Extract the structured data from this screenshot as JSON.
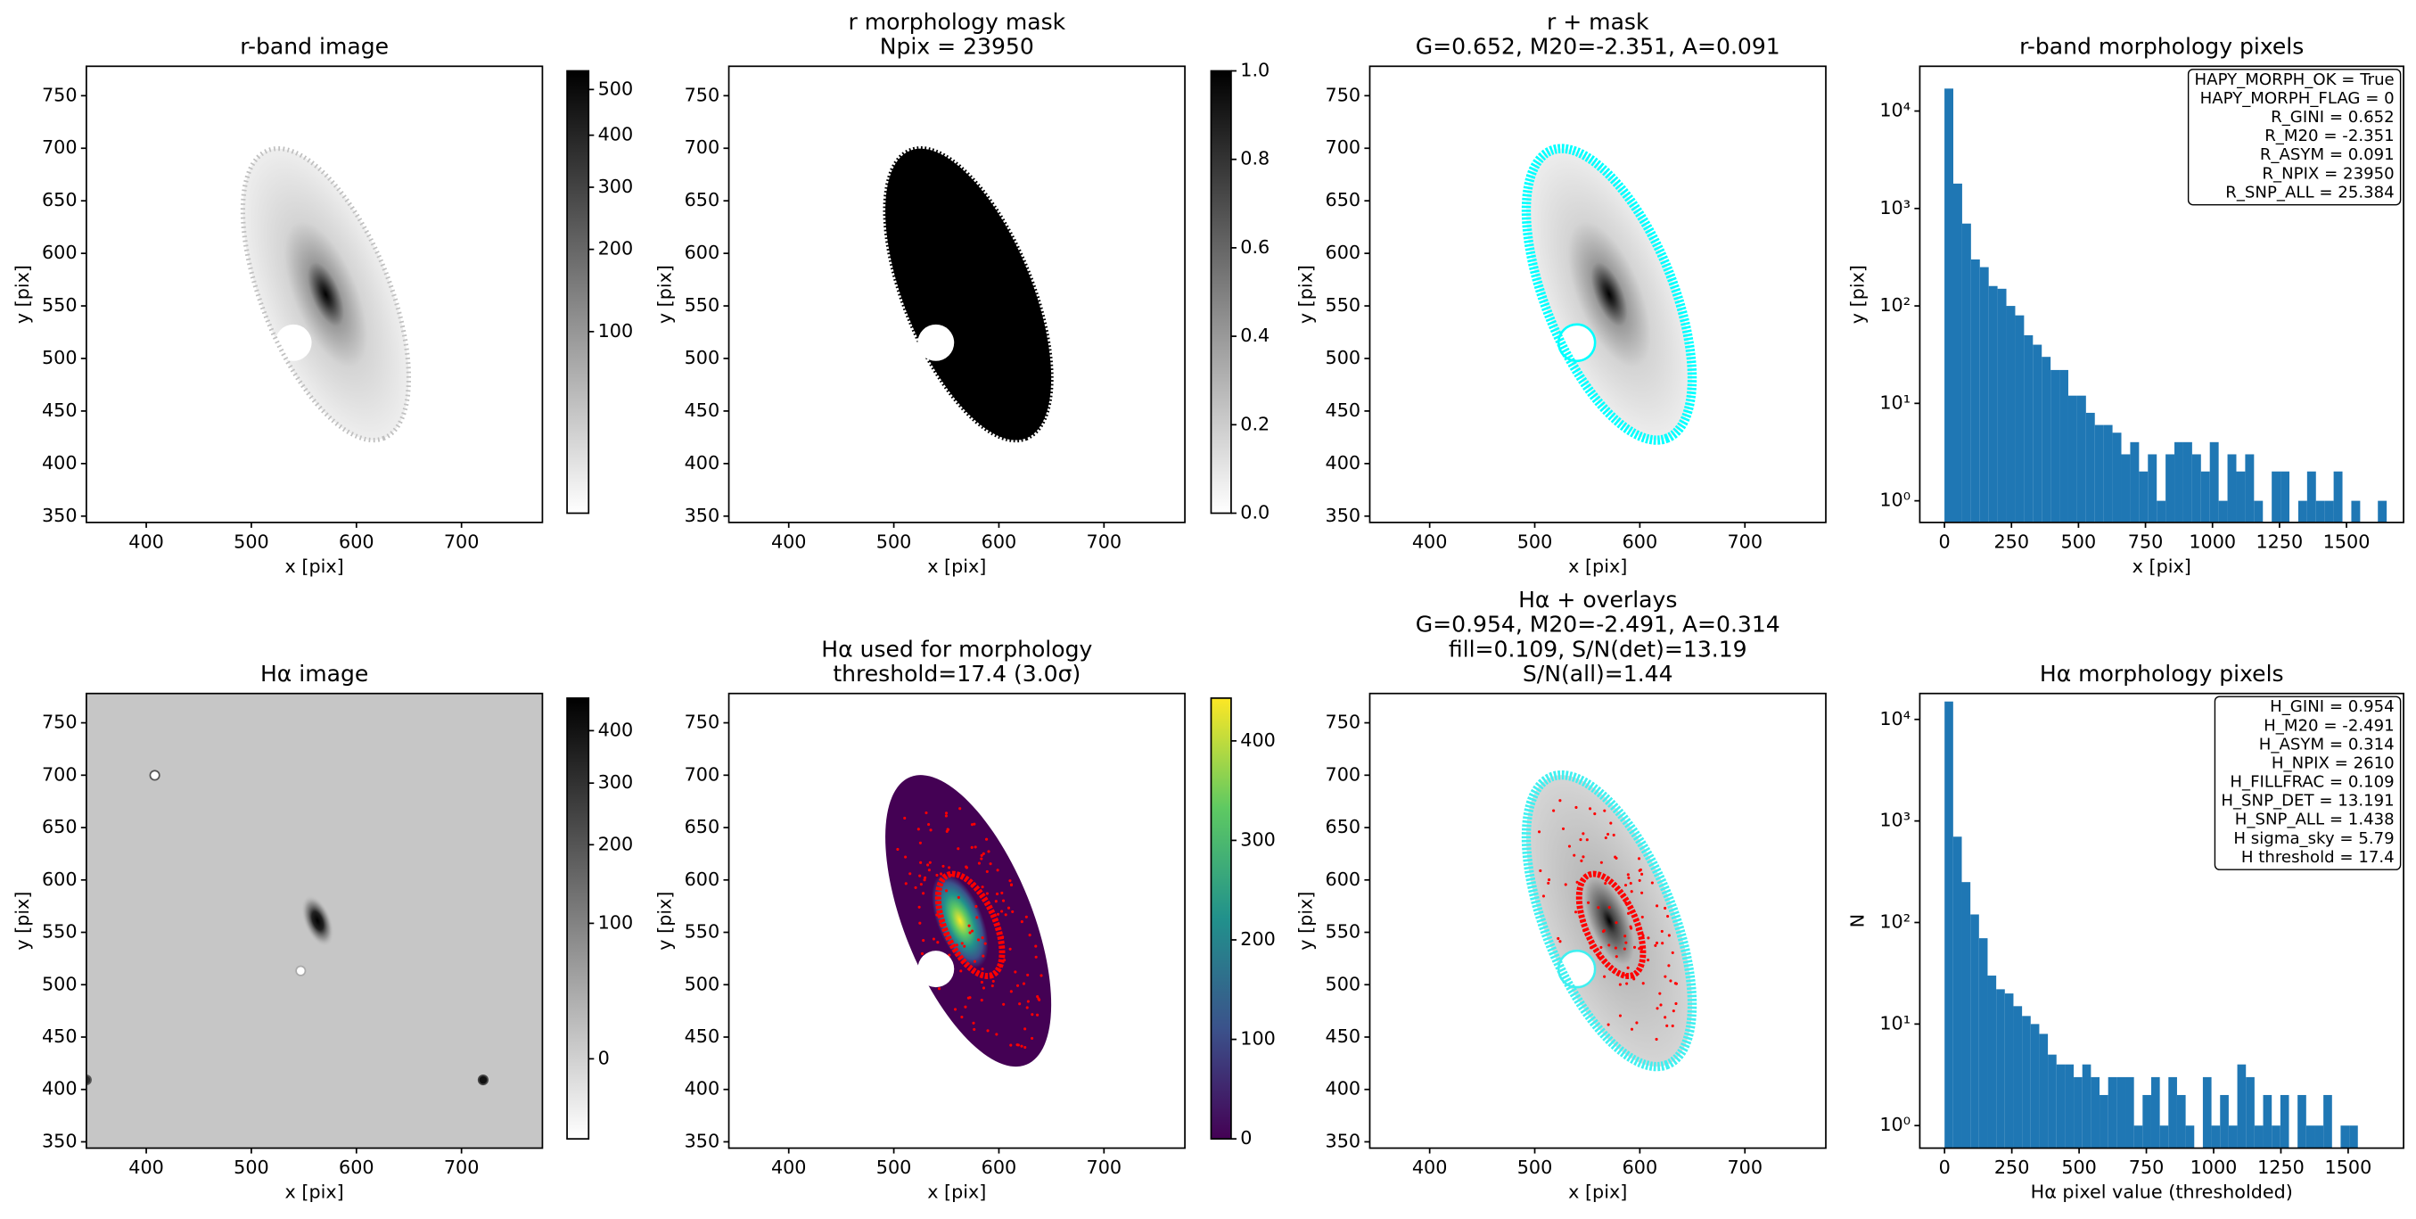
{
  "chart_data": [
    {
      "type": "image",
      "title": [
        "r-band image"
      ],
      "xlabel": "x [pix]",
      "ylabel": "y [pix]",
      "xlim": [
        343,
        777
      ],
      "ylim": [
        344,
        778
      ],
      "xticks": [
        400,
        500,
        600,
        700
      ],
      "yticks": [
        350,
        400,
        450,
        500,
        550,
        600,
        650,
        700,
        750
      ],
      "colormap": "gray_r",
      "colorbar": {
        "scale": "sqrt",
        "clim": [
          10,
          544
        ],
        "ticks": [
          100,
          200,
          300,
          400,
          500
        ]
      }
    },
    {
      "type": "image",
      "title": [
        "r morphology mask",
        "Npix = 23950"
      ],
      "xlabel": "x [pix]",
      "ylabel": "y [pix]",
      "xlim": [
        343,
        777
      ],
      "ylim": [
        344,
        778
      ],
      "xticks": [
        400,
        500,
        600,
        700
      ],
      "yticks": [
        350,
        400,
        450,
        500,
        550,
        600,
        650,
        700,
        750
      ],
      "colormap": "binary",
      "colorbar": {
        "scale": "linear",
        "clim": [
          0,
          1
        ],
        "ticks": [
          {
            "value": 0,
            "label": "0.0"
          },
          {
            "value": 0.2,
            "label": "0.2"
          },
          {
            "value": 0.4,
            "label": "0.4"
          },
          {
            "value": 0.6,
            "label": "0.6"
          },
          {
            "value": 0.8,
            "label": "0.8"
          },
          {
            "value": 1,
            "label": "1.0"
          }
        ]
      }
    },
    {
      "type": "image",
      "title": [
        "r + mask",
        "G=0.652, M20=-2.351, A=0.091"
      ],
      "xlabel": "x [pix]",
      "ylabel": "y [pix]",
      "xlim": [
        343,
        777
      ],
      "ylim": [
        344,
        778
      ],
      "xticks": [
        400,
        500,
        600,
        700
      ],
      "yticks": [
        350,
        400,
        450,
        500,
        550,
        600,
        650,
        700,
        750
      ],
      "colormap": "gray_r",
      "mask_color": "#00ffff"
    },
    {
      "type": "histogram",
      "title": [
        "r-band morphology pixels"
      ],
      "xlabel": "x [pix]",
      "ylabel": "y [pix]",
      "bins": [
        0,
        33,
        66,
        99,
        132,
        165,
        198,
        231,
        264,
        297,
        330,
        363,
        396,
        429,
        462,
        495,
        528,
        561,
        594,
        627,
        660,
        693,
        726,
        759,
        792,
        825,
        858,
        891,
        924,
        957,
        990,
        1023,
        1056,
        1089,
        1122,
        1155,
        1188,
        1221,
        1254,
        1287,
        1320,
        1353,
        1386,
        1419,
        1452,
        1485,
        1518,
        1551,
        1584,
        1617,
        1650
      ],
      "counts": [
        17000,
        1800,
        700,
        300,
        250,
        160,
        150,
        100,
        80,
        50,
        40,
        30,
        22,
        22,
        12,
        12,
        8,
        6,
        6,
        5,
        3,
        4,
        2,
        3,
        1,
        3,
        4,
        4,
        3,
        2,
        4,
        1,
        3,
        2,
        3,
        1,
        0,
        2,
        2,
        0,
        1,
        2,
        1,
        1,
        2,
        0,
        1,
        0,
        0,
        1
      ],
      "color": "#1f77b4",
      "xlim": [
        -92,
        1713
      ],
      "ylim": [
        0.6,
        28800
      ],
      "log_y": true,
      "xticks": [
        0,
        250,
        500,
        750,
        1000,
        1250,
        1500
      ],
      "yticks": [
        {
          "value": 1,
          "label": "10⁰"
        },
        {
          "value": 10,
          "label": "10¹"
        },
        {
          "value": 100,
          "label": "10²"
        },
        {
          "value": 1000,
          "label": "10³"
        },
        {
          "value": 10000,
          "label": "10⁴"
        }
      ],
      "annotation_lines": [
        "HAPY_MORPH_OK = True",
        "HAPY_MORPH_FLAG = 0",
        "R_GINI = 0.652",
        "R_M20 = -2.351",
        "R_ASYM = 0.091",
        "R_NPIX = 23950",
        "R_SNP_ALL = 25.384"
      ]
    },
    {
      "type": "image",
      "title": [
        "Hα image"
      ],
      "xlabel": "x [pix]",
      "ylabel": "y [pix]",
      "xlim": [
        343,
        777
      ],
      "ylim": [
        344,
        778
      ],
      "xticks": [
        400,
        500,
        600,
        700
      ],
      "yticks": [
        350,
        400,
        450,
        500,
        550,
        600,
        650,
        700,
        750
      ],
      "colormap": "gray_r",
      "colorbar": {
        "scale": "sqrt",
        "clim": [
          -16,
          469
        ],
        "ticks": [
          0,
          100,
          200,
          300,
          400
        ]
      }
    },
    {
      "type": "image",
      "title": [
        "Hα used for morphology",
        "threshold=17.4 (3.0σ)"
      ],
      "xlabel": "x [pix]",
      "ylabel": "y [pix]",
      "xlim": [
        343,
        777
      ],
      "ylim": [
        344,
        778
      ],
      "xticks": [
        400,
        500,
        600,
        700
      ],
      "yticks": [
        350,
        400,
        450,
        500,
        550,
        600,
        650,
        700,
        750
      ],
      "colormap": "viridis",
      "threshold_color": "#ff0000",
      "colorbar": {
        "scale": "linear",
        "clim": [
          0,
          443
        ],
        "ticks": [
          0,
          100,
          200,
          300,
          400
        ]
      }
    },
    {
      "type": "image",
      "title": [
        "Hα + overlays",
        "G=0.954, M20=-2.491, A=0.314",
        "fill=0.109, S/N(det)=13.19",
        "S/N(all)=1.44"
      ],
      "xlabel": "x [pix]",
      "ylabel": "y [pix]",
      "xlim": [
        343,
        777
      ],
      "ylim": [
        344,
        778
      ],
      "xticks": [
        400,
        500,
        600,
        700
      ],
      "yticks": [
        350,
        400,
        450,
        500,
        550,
        600,
        650,
        700,
        750
      ],
      "colormap": "gray_r",
      "mask_color": "#40f0f0",
      "threshold_color": "#ff0000"
    },
    {
      "type": "histogram",
      "title": [
        "Hα morphology pixels"
      ],
      "xlabel": "Hα pixel value (thresholded)",
      "ylabel": "N",
      "bins": [
        0,
        32,
        64,
        96,
        128,
        160,
        192,
        224,
        256,
        288,
        320,
        352,
        384,
        416,
        448,
        480,
        512,
        544,
        576,
        608,
        640,
        672,
        704,
        736,
        768,
        800,
        832,
        864,
        896,
        928,
        960,
        992,
        1024,
        1056,
        1088,
        1120,
        1152,
        1184,
        1216,
        1248,
        1280,
        1312,
        1344,
        1376,
        1408,
        1440,
        1472,
        1504,
        1536
      ],
      "counts": [
        15000,
        700,
        250,
        120,
        70,
        30,
        22,
        20,
        15,
        12,
        10,
        8,
        5,
        4,
        4,
        3,
        4,
        3,
        2,
        3,
        3,
        3,
        1,
        2,
        3,
        1,
        3,
        2,
        1,
        0,
        3,
        1,
        2,
        1,
        4,
        3,
        1,
        2,
        1,
        2,
        0,
        2,
        1,
        1,
        2,
        0,
        1,
        1
      ],
      "color": "#1f77b4",
      "xlim": [
        -92,
        1706
      ],
      "ylim": [
        0.6,
        18000
      ],
      "log_y": true,
      "xticks": [
        0,
        250,
        500,
        750,
        1000,
        1250,
        1500
      ],
      "yticks": [
        {
          "value": 1,
          "label": "10⁰"
        },
        {
          "value": 10,
          "label": "10¹"
        },
        {
          "value": 100,
          "label": "10²"
        },
        {
          "value": 1000,
          "label": "10³"
        },
        {
          "value": 10000,
          "label": "10⁴"
        }
      ],
      "annotation_lines": [
        "H_GINI = 0.954",
        "H_M20 = -2.491",
        "H_ASYM = 0.314",
        "H_NPIX = 2610",
        "H_FILLFRAC = 0.109",
        "H_SNP_DET = 13.191",
        "H_SNP_ALL = 1.438",
        "H sigma_sky = 5.79",
        "H threshold = 17.4"
      ]
    }
  ]
}
